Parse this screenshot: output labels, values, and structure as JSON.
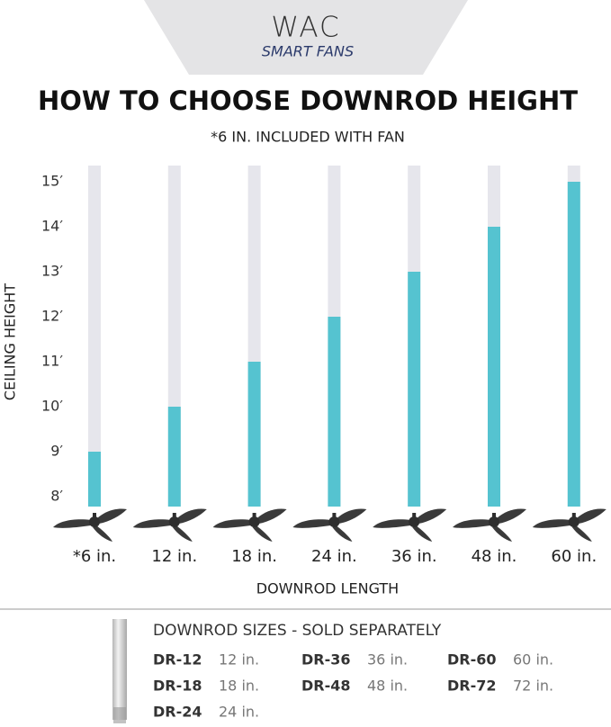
{
  "chart_data": {
    "type": "bar",
    "brand": "WAC",
    "brand_subtitle": "SMART FANS",
    "title": "HOW TO CHOOSE DOWNROD HEIGHT",
    "subtitle": "*6 IN. INCLUDED WITH FAN",
    "y_label": "CEILING HEIGHT",
    "x_label": "DOWNROD LENGTH",
    "categories": [
      "*6 in.",
      "12 in.",
      "18 in.",
      "24 in.",
      "36 in.",
      "48 in.",
      "60 in."
    ],
    "values": [
      9,
      10,
      11,
      12,
      13,
      14,
      15
    ],
    "color": "#55c3d0",
    "track_color": "#e6e6ec",
    "ylim": [
      7.78,
      15.36
    ],
    "yticks": [
      {
        "value": 8,
        "label": "8′"
      },
      {
        "value": 9,
        "label": "9′"
      },
      {
        "value": 10,
        "label": "10′"
      },
      {
        "value": 11,
        "label": "11′"
      },
      {
        "value": 12,
        "label": "12′"
      },
      {
        "value": 13,
        "label": "13′"
      },
      {
        "value": 14,
        "label": "14′"
      },
      {
        "value": 15,
        "label": "15′"
      }
    ],
    "grid": false
  },
  "downrod_sizes": {
    "title": "DOWNROD SIZES - SOLD SEPARATELY",
    "columns": [
      [
        {
          "code": "DR-12",
          "length": "12 in."
        },
        {
          "code": "DR-18",
          "length": "18 in."
        },
        {
          "code": "DR-24",
          "length": "24 in."
        }
      ],
      [
        {
          "code": "DR-36",
          "length": "36 in."
        },
        {
          "code": "DR-48",
          "length": "48 in."
        }
      ],
      [
        {
          "code": "DR-60",
          "length": "60 in."
        },
        {
          "code": "DR-72",
          "length": "72 in."
        }
      ]
    ]
  }
}
